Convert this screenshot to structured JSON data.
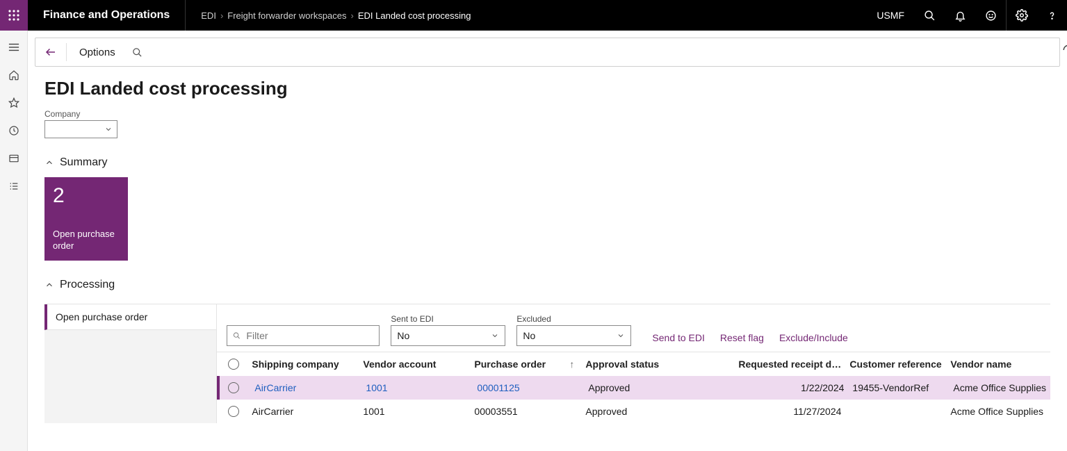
{
  "top": {
    "app_name": "Finance and Operations",
    "breadcrumbs": [
      "EDI",
      "Freight forwarder workspaces",
      "EDI Landed cost processing"
    ],
    "company_code": "USMF"
  },
  "actionbar": {
    "options": "Options"
  },
  "page": {
    "title": "EDI Landed cost processing",
    "company_field_label": "Company",
    "summary_label": "Summary",
    "tile": {
      "count": "2",
      "caption": "Open purchase order"
    },
    "processing_label": "Processing",
    "tab_label": "Open purchase order"
  },
  "toolbar": {
    "filter_placeholder": "Filter",
    "sent_label": "Sent to EDI",
    "sent_value": "No",
    "excluded_label": "Excluded",
    "excluded_value": "No",
    "actions": {
      "send": "Send to EDI",
      "reset": "Reset flag",
      "exclude": "Exclude/Include"
    }
  },
  "grid": {
    "columns": {
      "shipping": "Shipping company",
      "vendacct": "Vendor account",
      "po": "Purchase order",
      "approval": "Approval status",
      "reqdate": "Requested receipt date",
      "custref": "Customer reference",
      "vendor": "Vendor name"
    },
    "rows": [
      {
        "shipping": "AirCarrier",
        "vendacct": "1001",
        "po": "00001125",
        "approval": "Approved",
        "reqdate": "1/22/2024",
        "custref": "19455-VendorRef",
        "vendor": "Acme Office Supplies",
        "selected": true,
        "link": true
      },
      {
        "shipping": "AirCarrier",
        "vendacct": "1001",
        "po": "00003551",
        "approval": "Approved",
        "reqdate": "11/27/2024",
        "custref": "",
        "vendor": "Acme Office Supplies",
        "selected": false,
        "link": false
      }
    ]
  },
  "colors": {
    "accent": "#742774"
  }
}
